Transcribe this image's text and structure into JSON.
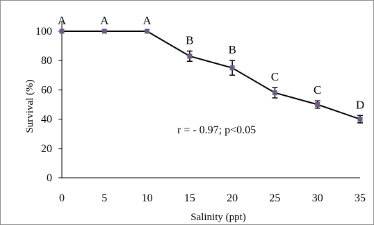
{
  "chart_data": {
    "type": "line",
    "x": [
      0,
      5,
      10,
      15,
      20,
      25,
      30,
      35
    ],
    "series": [
      {
        "values": [
          100,
          100,
          100,
          83,
          75,
          58,
          50,
          40
        ],
        "error": [
          0,
          0,
          0,
          3.5,
          5,
          3.5,
          2.5,
          2.5
        ],
        "labels": [
          "A",
          "A",
          "A",
          "B",
          "B",
          "C",
          "C",
          "D"
        ]
      }
    ],
    "xlabel": "Salinity (ppt)",
    "ylabel": "Survival (%)",
    "xticks": [
      "0",
      "5",
      "10",
      "15",
      "20",
      "25",
      "30",
      "35"
    ],
    "yticks": [
      "0",
      "20",
      "40",
      "60",
      "80",
      "100"
    ],
    "xlim": [
      0,
      35
    ],
    "ylim": [
      0,
      100
    ],
    "annotation": "r = - 0.97; p<0.05",
    "grid": false,
    "legend": "none",
    "colors": {
      "line": "#000000",
      "marker": "#6e5a8c",
      "error_bar": "#000000"
    }
  }
}
